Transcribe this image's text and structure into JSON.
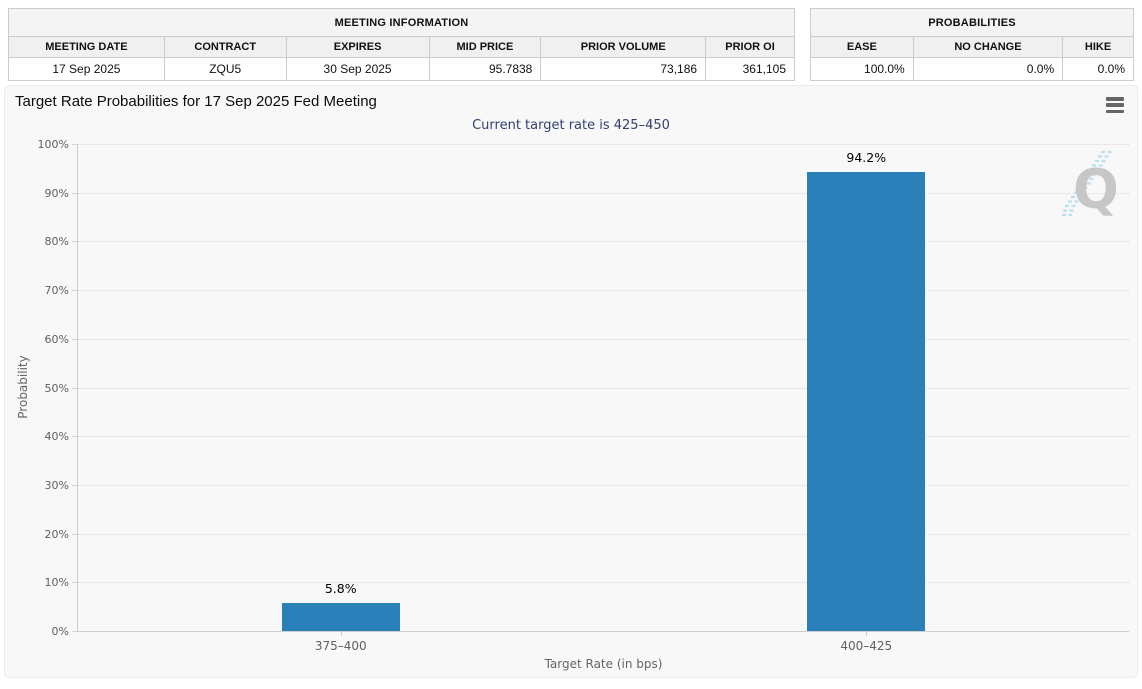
{
  "meeting_table": {
    "title": "MEETING INFORMATION",
    "columns": [
      "MEETING DATE",
      "CONTRACT",
      "EXPIRES",
      "MID PRICE",
      "PRIOR VOLUME",
      "PRIOR OI"
    ],
    "values": [
      "17 Sep 2025",
      "ZQU5",
      "30 Sep 2025",
      "95.7838",
      "73,186",
      "361,105"
    ]
  },
  "probabilities_table": {
    "title": "PROBABILITIES",
    "columns": [
      "EASE",
      "NO CHANGE",
      "HIKE"
    ],
    "values": [
      "100.0%",
      "0.0%",
      "0.0%"
    ]
  },
  "chart": {
    "title": "Target Rate Probabilities for 17 Sep 2025 Fed Meeting",
    "subtitle": "Current target rate is 425–450",
    "menu_icon": "hamburger-menu-icon",
    "watermark_letter": "Q",
    "y_ticks": [
      "100%",
      "90%",
      "80%",
      "70%",
      "60%",
      "50%",
      "40%",
      "30%",
      "20%",
      "10%",
      "0%"
    ]
  },
  "chart_data": {
    "type": "bar",
    "categories": [
      "375–400",
      "400–425"
    ],
    "values": [
      5.8,
      94.2
    ],
    "data_labels": [
      "5.8%",
      "94.2%"
    ],
    "title": "Target Rate Probabilities for 17 Sep 2025 Fed Meeting",
    "subtitle": "Current target rate is 425–450",
    "xlabel": "Target Rate (in bps)",
    "ylabel": "Probability",
    "ylim": [
      0,
      100
    ],
    "y_tick_step": 10,
    "grid": "horizontal-dotted",
    "legend": "none",
    "bar_color": "#2c80ba",
    "subtitle_color": "#334170"
  }
}
